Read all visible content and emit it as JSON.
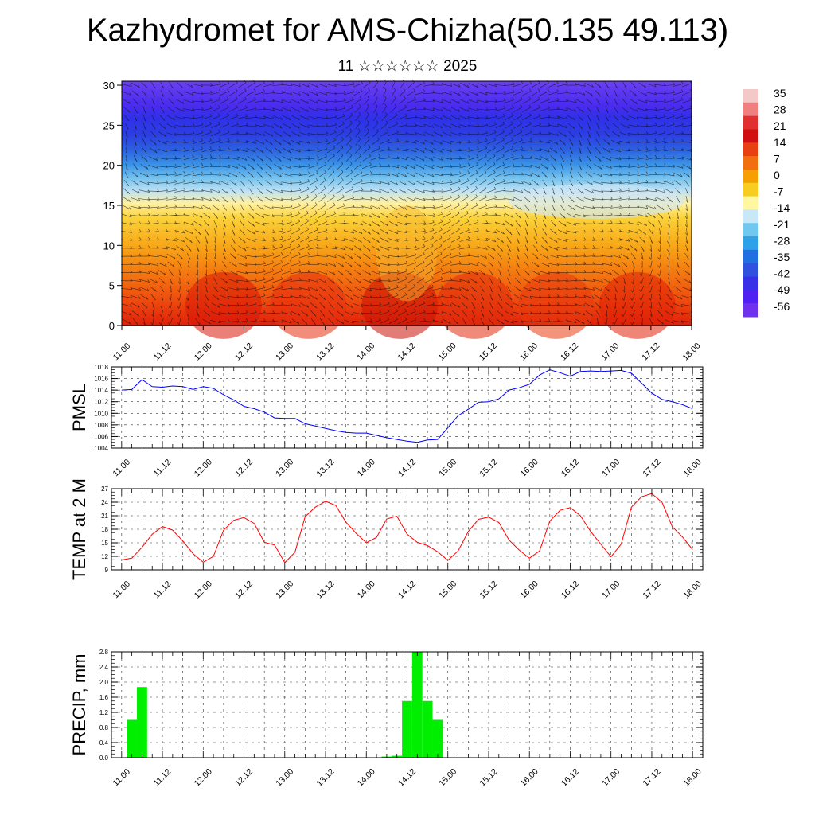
{
  "title": "Kazhydromet for AMS-Chizha(50.135 49.113)",
  "subtitle": "11 ☆☆☆☆☆☆ 2025",
  "chart_data": [
    {
      "type": "heatmap",
      "name": "temperature-wind cross-section",
      "x_tick_labels": [
        "11.00",
        "11.12",
        "12.00",
        "12.12",
        "13.00",
        "13.12",
        "14.00",
        "14.12",
        "15.00",
        "15.12",
        "16.00",
        "16.12",
        "17.00",
        "17.12",
        "18.00"
      ],
      "xlim": [
        0,
        168
      ],
      "y_tick_labels": [
        "0",
        "5",
        "10",
        "15",
        "20",
        "25",
        "30"
      ],
      "ylim": [
        0,
        30.5
      ],
      "grid": false,
      "overlay": "wind barbs",
      "colorbar": {
        "labels": [
          "35",
          "28",
          "21",
          "14",
          "7",
          "0",
          "-7",
          "-14",
          "-21",
          "-28",
          "-35",
          "-42",
          "-49",
          "-56"
        ],
        "colors": [
          "#f5c8c8",
          "#f08080",
          "#e03030",
          "#d01010",
          "#e84010",
          "#f07010",
          "#f5a000",
          "#f8cc20",
          "#fff8a0",
          "#c8e8f8",
          "#70c8f0",
          "#30a0e8",
          "#2070e0",
          "#3050e0",
          "#3830e8",
          "#5020f0",
          "#7030f0"
        ]
      }
    },
    {
      "type": "line",
      "ylabel": "PMSL",
      "x_tick_labels": [
        "11.00",
        "11.12",
        "12.00",
        "12.12",
        "13.00",
        "13.12",
        "14.00",
        "14.12",
        "15.00",
        "15.12",
        "16.00",
        "16.12",
        "17.00",
        "17.12",
        "18.00"
      ],
      "xlim": [
        -3,
        171
      ],
      "ylim": [
        1004,
        1018
      ],
      "y_ticks": [
        1004,
        1006,
        1008,
        1010,
        1012,
        1014,
        1016,
        1018
      ],
      "grid": true,
      "color": "#0000ff",
      "series": [
        {
          "x": [
            0,
            3,
            6,
            9,
            12,
            15,
            18,
            21,
            24,
            27,
            30,
            33,
            36,
            39,
            42,
            45,
            48,
            51,
            54,
            57,
            60,
            63,
            66,
            69,
            72,
            75,
            78,
            81,
            84,
            87,
            90,
            93,
            96,
            99,
            102,
            105,
            108,
            111,
            114,
            117,
            120,
            123,
            126,
            129,
            132,
            135,
            138,
            141,
            144,
            147,
            150,
            153,
            156,
            159,
            162,
            165,
            168
          ],
          "values": [
            1014,
            1014.1,
            1015.8,
            1014.6,
            1014.5,
            1014.7,
            1014.6,
            1014.1,
            1014.6,
            1014.3,
            1013.2,
            1012.3,
            1011.2,
            1010.8,
            1010.2,
            1009.2,
            1009.1,
            1009.1,
            1008.2,
            1007.8,
            1007.4,
            1007.0,
            1006.7,
            1006.6,
            1006.6,
            1006.2,
            1005.8,
            1005.5,
            1005.2,
            1005.0,
            1005.4,
            1005.5,
            1007.5,
            1009.6,
            1010.7,
            1011.9,
            1012.0,
            1012.5,
            1014.0,
            1014.4,
            1015.0,
            1016.6,
            1017.5,
            1017.0,
            1016.4,
            1017.2,
            1017.3,
            1017.2,
            1017.3,
            1017.4,
            1016.9,
            1015.2,
            1013.5,
            1012.4,
            1012.0,
            1011.5,
            1010.8
          ]
        }
      ]
    },
    {
      "type": "line",
      "ylabel": "TEMP at 2 M",
      "x_tick_labels": [
        "11.00",
        "11.12",
        "12.00",
        "12.12",
        "13.00",
        "13.12",
        "14.00",
        "14.12",
        "15.00",
        "15.12",
        "16.00",
        "16.12",
        "17.00",
        "17.12",
        "18.00"
      ],
      "xlim": [
        -3,
        171
      ],
      "ylim": [
        9,
        27
      ],
      "y_ticks": [
        9,
        12,
        15,
        18,
        21,
        24,
        27
      ],
      "grid": true,
      "color": "#ff0000",
      "series": [
        {
          "x": [
            0,
            3,
            6,
            9,
            12,
            15,
            18,
            21,
            24,
            27,
            30,
            33,
            36,
            39,
            42,
            45,
            48,
            51,
            54,
            57,
            60,
            63,
            66,
            69,
            72,
            75,
            78,
            81,
            84,
            87,
            90,
            93,
            96,
            99,
            102,
            105,
            108,
            111,
            114,
            117,
            120,
            123,
            126,
            129,
            132,
            135,
            138,
            141,
            144,
            147,
            150,
            153,
            156,
            159,
            162,
            165,
            168
          ],
          "values": [
            11.2,
            11.6,
            14.0,
            16.9,
            18.6,
            17.8,
            15.4,
            12.6,
            10.7,
            12.0,
            17.8,
            20.0,
            20.6,
            19.3,
            15.1,
            14.5,
            10.6,
            12.9,
            20.8,
            22.9,
            24.2,
            23.3,
            19.6,
            17.1,
            15.0,
            16.2,
            20.3,
            20.9,
            16.9,
            15.1,
            14.4,
            13.0,
            11.1,
            13.2,
            17.5,
            20.2,
            20.7,
            19.5,
            15.6,
            13.4,
            11.6,
            13.2,
            19.8,
            22.2,
            22.8,
            21.0,
            17.5,
            14.7,
            11.9,
            14.7,
            22.9,
            25.2,
            25.9,
            24.0,
            18.6,
            16.3,
            13.5
          ]
        }
      ]
    },
    {
      "type": "bar",
      "ylabel": "PRECIP, mm",
      "x_tick_labels": [
        "11.00",
        "11.12",
        "12.00",
        "12.12",
        "13.00",
        "13.12",
        "14.00",
        "14.12",
        "15.00",
        "15.12",
        "16.00",
        "16.12",
        "17.00",
        "17.12",
        "18.00"
      ],
      "xlim": [
        -3,
        171
      ],
      "ylim": [
        0,
        2.8
      ],
      "y_tick_labels": [
        "0.0",
        "0.4",
        "0.8",
        "1.2",
        "1.6",
        "2.0",
        "2.4",
        "2.8"
      ],
      "grid": true,
      "color": "#00ee00",
      "x": [
        3,
        6,
        78,
        81,
        84,
        87,
        90,
        93
      ],
      "values": [
        1.0,
        1.87,
        0.03,
        0.05,
        1.5,
        2.8,
        1.5,
        1.0
      ]
    }
  ]
}
